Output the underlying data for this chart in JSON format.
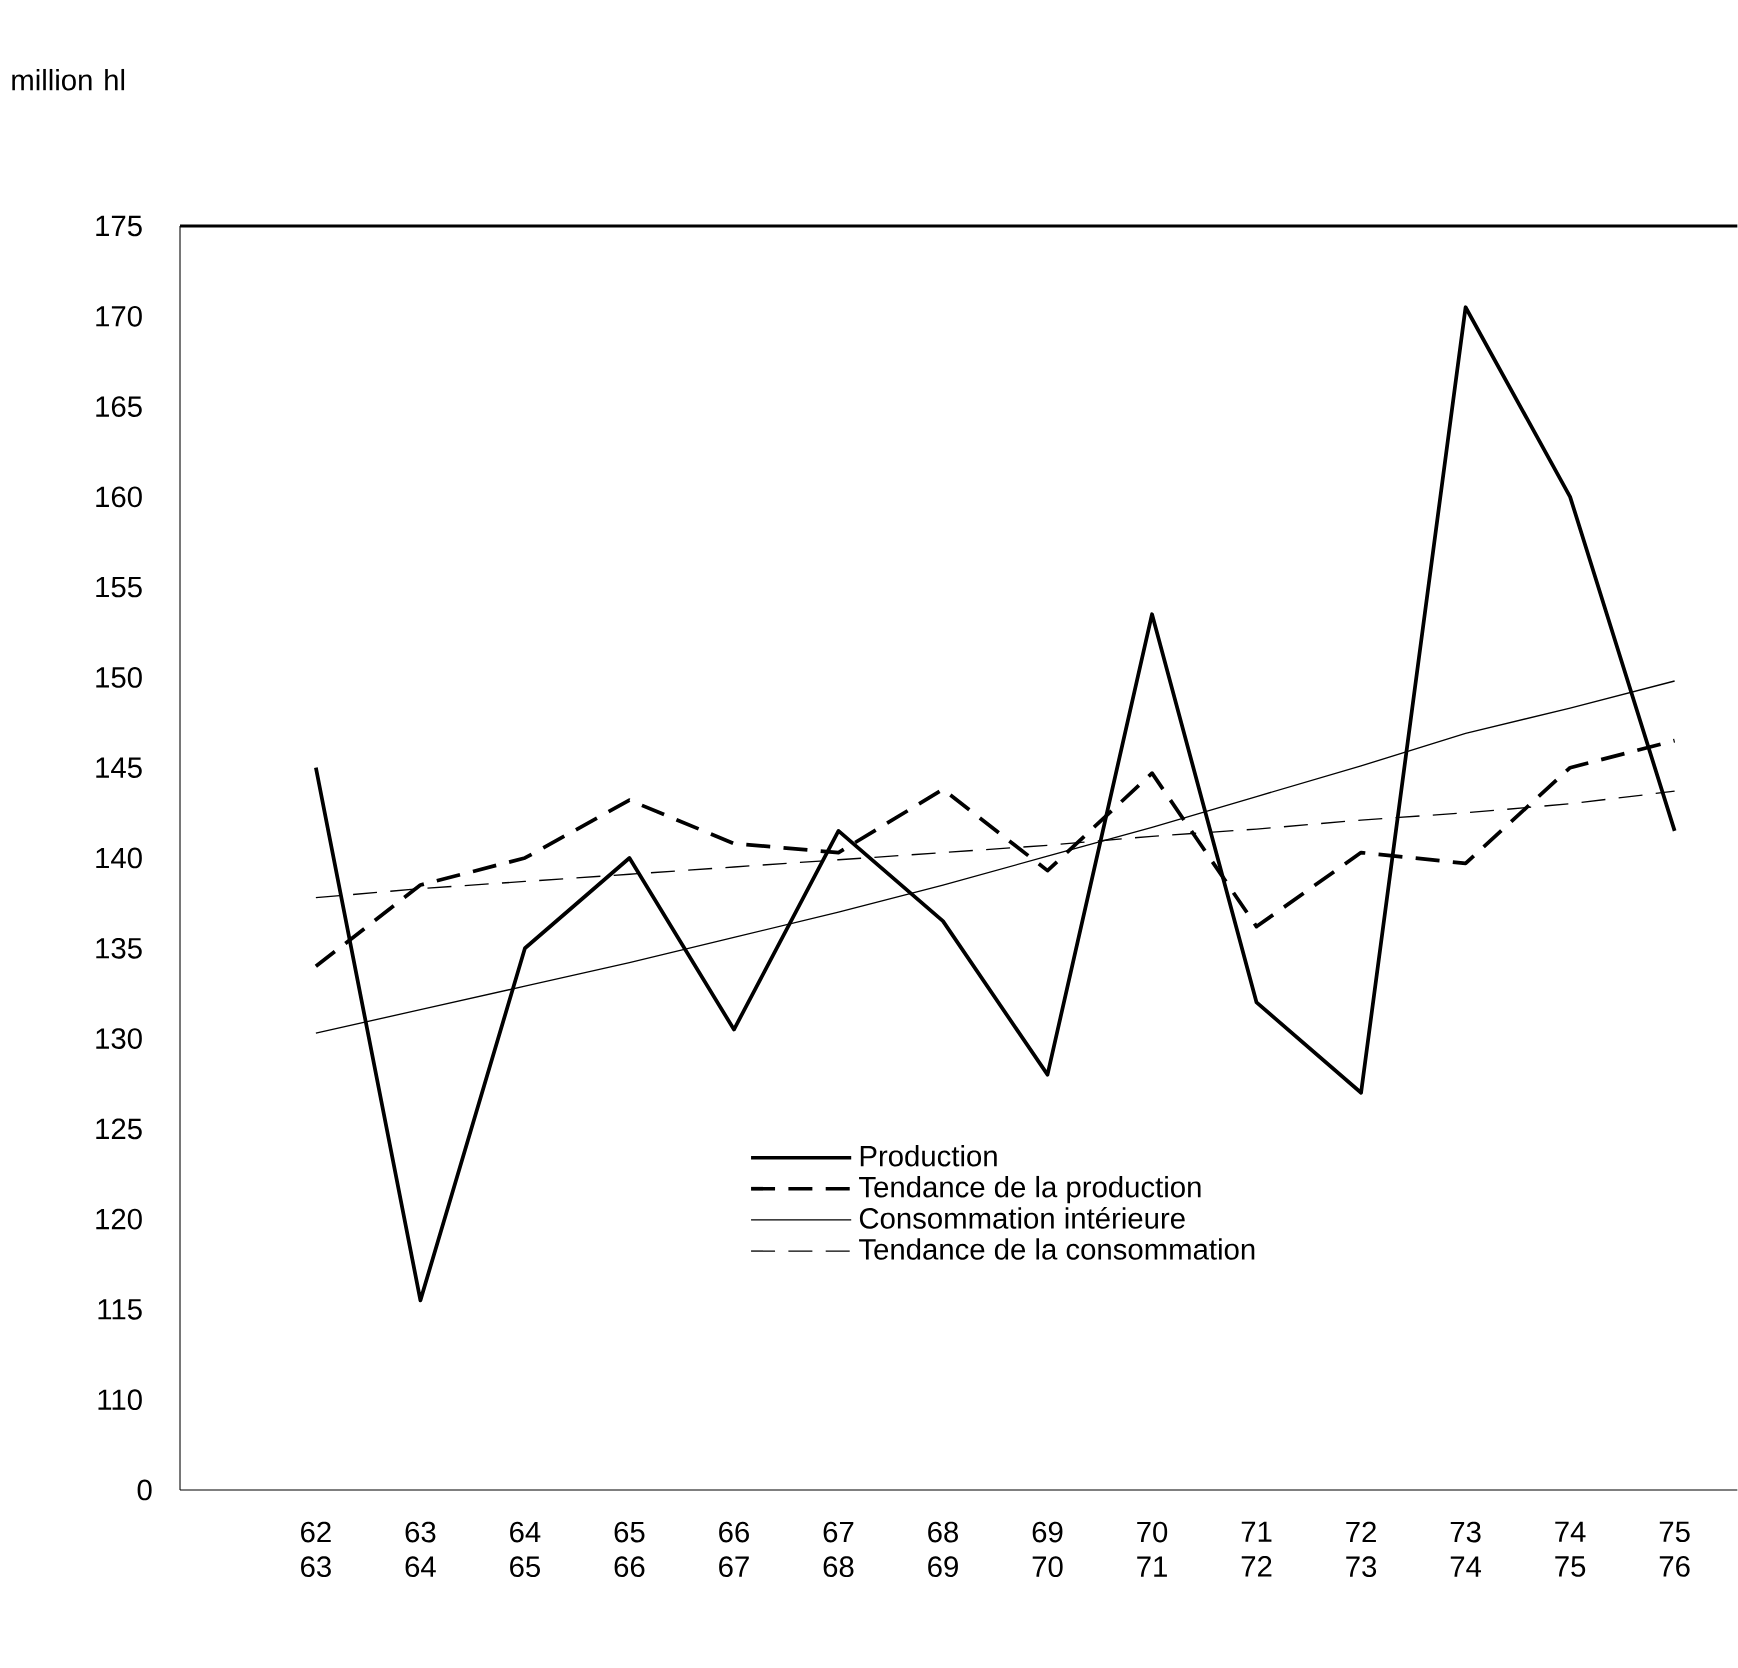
{
  "chart_data": {
    "type": "line",
    "ylabel": "million hl",
    "categories": [
      "62 63",
      "63 64",
      "64 65",
      "65 66",
      "66 67",
      "67 68",
      "68 69",
      "69 70",
      "70 71",
      "71 72",
      "72 73",
      "73 74",
      "74 75",
      "75 76"
    ],
    "series": [
      {
        "name": "Production",
        "color": "#000000",
        "line_style": "solid",
        "values": [
          145,
          115.5,
          135,
          140,
          130.5,
          141.5,
          136.5,
          128,
          153.5,
          132,
          127,
          170.5,
          160,
          141.5
        ]
      },
      {
        "name": "Tendance de la production",
        "color": "#000000",
        "line_style": "dashed",
        "values": [
          134,
          138.5,
          140,
          143.2,
          140.8,
          140.3,
          143.8,
          139.3,
          144.7,
          136.2,
          140.3,
          139.7,
          145,
          146.5
        ]
      },
      {
        "name": "Consommation intérieure",
        "color": "#000000",
        "line_style": "solid",
        "values": [
          130.3,
          131.6,
          132.9,
          134.2,
          135.6,
          137,
          138.5,
          140.1,
          141.7,
          143.4,
          145.1,
          146.9,
          148.3,
          149.8
        ]
      },
      {
        "name": "Tendance de la consommation",
        "color": "#000000",
        "line_style": "dashed",
        "values": [
          137.8,
          138.3,
          138.7,
          139.1,
          139.5,
          139.9,
          140.3,
          140.7,
          141.2,
          141.6,
          142.1,
          142.5,
          143,
          143.7
        ]
      }
    ],
    "ylim": [
      105,
      175
    ],
    "annotations": [
      "0"
    ],
    "yticks": [
      110,
      115,
      120,
      125,
      130,
      135,
      140,
      145,
      150,
      155,
      160,
      165,
      170,
      175
    ],
    "grid": false,
    "legend": "bottom",
    "marker": "none"
  }
}
